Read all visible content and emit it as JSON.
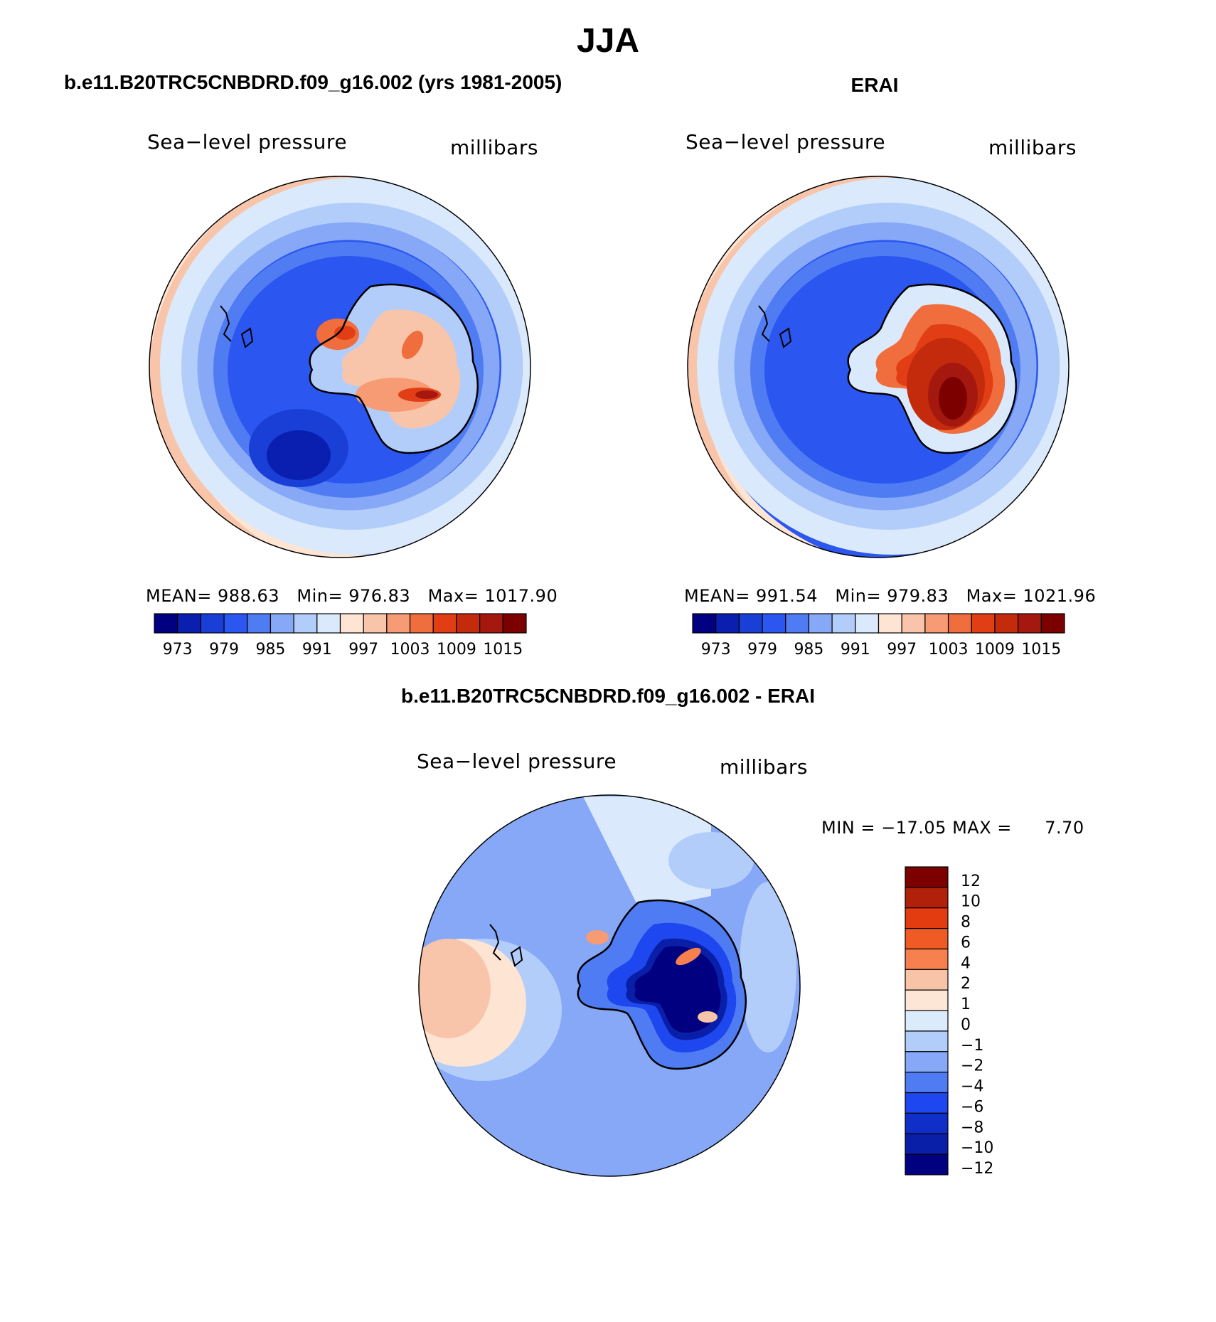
{
  "title": "JJA",
  "panels": [
    {
      "id": "model",
      "title": "b.e11.B20TRC5CNBDRD.f09_g16.002 (yrs 1981-2005)",
      "variable": "Sea−level pressure",
      "units": "millibars",
      "stats": {
        "mean_label": "MEAN=",
        "mean": "988.63",
        "min_label": "Min=",
        "min": "976.83",
        "max_label": "Max=",
        "max": "1017.90"
      }
    },
    {
      "id": "obs",
      "title": "ERAI",
      "variable": "Sea−level pressure",
      "units": "millibars",
      "stats": {
        "mean_label": "MEAN=",
        "mean": "991.54",
        "min_label": "Min=",
        "min": "979.83",
        "max_label": "Max=",
        "max": "1021.96"
      }
    },
    {
      "id": "diff",
      "title": "b.e11.B20TRC5CNBDRD.f09_g16.002 - ERAI",
      "variable": "Sea−level pressure",
      "units": "millibars",
      "stats": {
        "min_label": "MIN =",
        "min": "−17.05",
        "max_label": "MAX =",
        "max": "7.70"
      }
    }
  ],
  "abs_colorbar": {
    "colors": [
      "#000080",
      "#0a1fb0",
      "#1a3fd6",
      "#2b57f0",
      "#4f7cf2",
      "#86a8f7",
      "#b3cdfb",
      "#daeafc",
      "#fde4d3",
      "#f8c5aa",
      "#f79b74",
      "#f06d3d",
      "#e23e15",
      "#c42a0c",
      "#a51810",
      "#7d0000"
    ],
    "tick_labels": [
      "973",
      "979",
      "985",
      "991",
      "997",
      "1003",
      "1009",
      "1015"
    ]
  },
  "diff_colorbar": {
    "colors": [
      "#7d0000",
      "#b0200a",
      "#e23c10",
      "#f05a25",
      "#f7804f",
      "#f8c4a8",
      "#fde6d5",
      "#dcebfc",
      "#b3cdfb",
      "#86a8f7",
      "#4f7cf2",
      "#1e47ef",
      "#0f2fc8",
      "#0a1fa8",
      "#000080"
    ],
    "tick_labels": [
      "12",
      "10",
      "8",
      "6",
      "4",
      "2",
      "1",
      "0",
      "−1",
      "−2",
      "−4",
      "−6",
      "−8",
      "−10",
      "−12"
    ]
  },
  "colors": {
    "land_outline": "#000000",
    "map_border": "#000000"
  }
}
